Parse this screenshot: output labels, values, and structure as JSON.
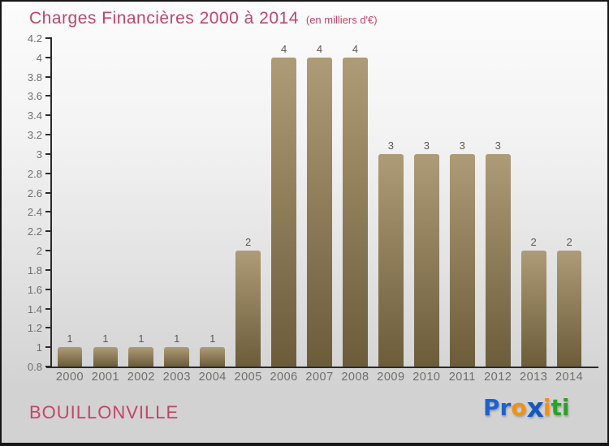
{
  "header": {
    "title": "Charges Financières 2000 à 2014",
    "subtitle": "(en milliers d'€)"
  },
  "chart_data": {
    "type": "bar",
    "title": "Charges Financières 2000 à 2014",
    "subtitle": "(en milliers d'€)",
    "categories": [
      "2000",
      "2001",
      "2002",
      "2003",
      "2004",
      "2005",
      "2006",
      "2007",
      "2008",
      "2009",
      "2010",
      "2011",
      "2012",
      "2013",
      "2014"
    ],
    "values": [
      1,
      1,
      1,
      1,
      1,
      2,
      4,
      4,
      4,
      3,
      3,
      3,
      3,
      2,
      2
    ],
    "bar_value_labels": [
      "1",
      "1",
      "1",
      "1",
      "1",
      "2",
      "4",
      "4",
      "4",
      "3",
      "3",
      "3",
      "3",
      "2",
      "2"
    ],
    "xlabel": "",
    "ylabel": "",
    "ylim": [
      0.8,
      4.2
    ],
    "y_tick_step": 0.2,
    "y_ticks": [
      "4.2",
      "4",
      "3.8",
      "3.6",
      "3.4",
      "3.2",
      "3",
      "2.8",
      "2.6",
      "2.4",
      "2.2",
      "2",
      "1.8",
      "1.6",
      "1.4",
      "1.2",
      "1",
      "0.8"
    ],
    "grid": false,
    "legend": null
  },
  "footer": {
    "place": "BOUILLONVILLE",
    "logo_letters": [
      {
        "ch": "P",
        "color": "#1b63cd",
        "x": false
      },
      {
        "ch": "r",
        "color": "#1b63cd",
        "x": false
      },
      {
        "ch": "o",
        "color": "#f29111",
        "x": false
      },
      {
        "ch": "x",
        "color": "#1557bf",
        "x": true
      },
      {
        "ch": "i",
        "color": "#f29111",
        "x": false
      },
      {
        "ch": "t",
        "color": "#27a327",
        "x": false
      },
      {
        "ch": "i",
        "color": "#27a327",
        "x": false
      }
    ]
  },
  "colors": {
    "accent_pink": "#c64368",
    "bar_gradient_top": "#ae9b77",
    "bar_gradient_bottom": "#6c5c3a",
    "axis": "#2b2b2b",
    "tick_label": "#6e6e6e",
    "value_label": "#5a5a5a",
    "background_top": "#fcfcfc",
    "background_bottom": "#d2d2d2"
  }
}
